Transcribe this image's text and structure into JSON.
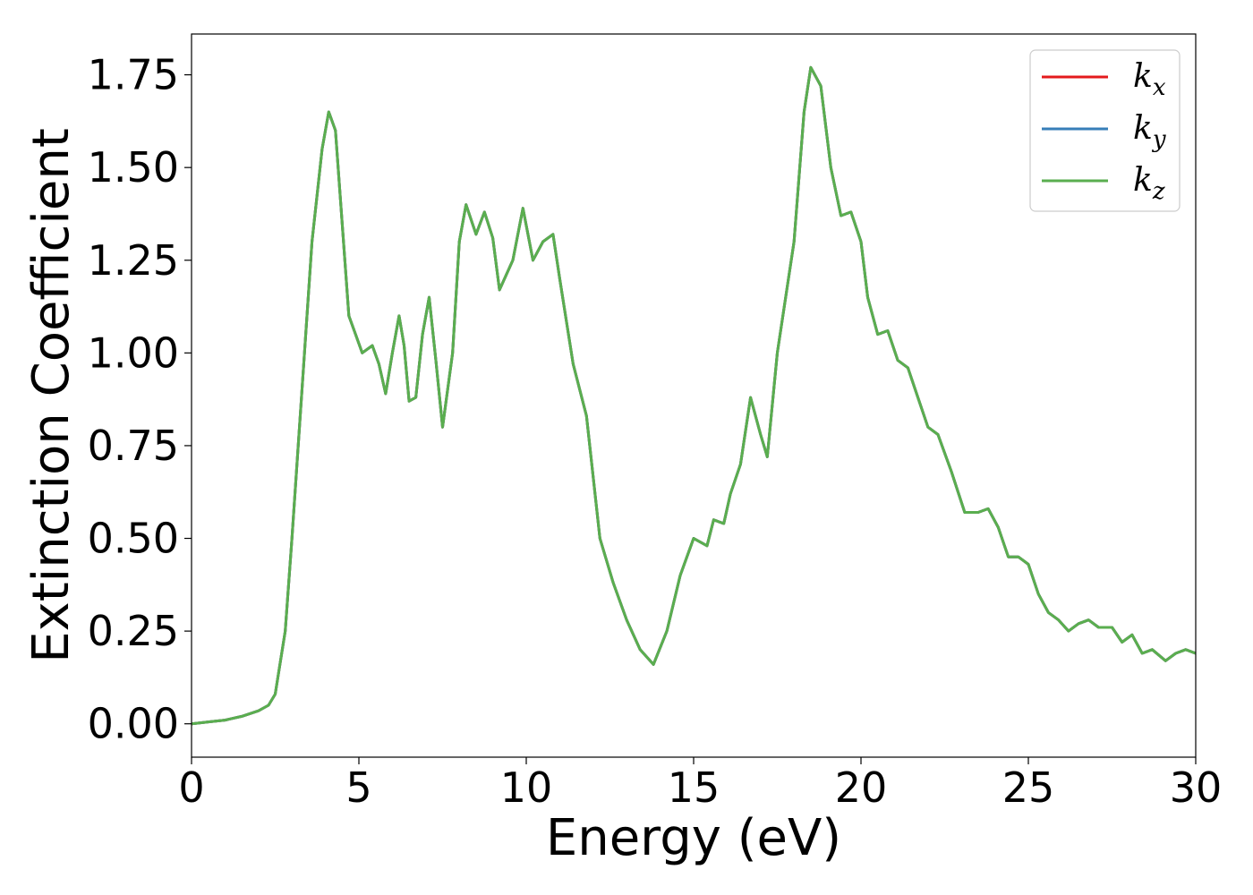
{
  "chart_data": {
    "type": "line",
    "xlabel": "Energy (eV)",
    "ylabel": "Extinction Coefficient",
    "xlim": [
      0,
      30
    ],
    "ylim": [
      -0.09,
      1.86
    ],
    "xticks": [
      0,
      5,
      10,
      15,
      20,
      25,
      30
    ],
    "xtick_labels": [
      "0",
      "5",
      "10",
      "15",
      "20",
      "25",
      "30"
    ],
    "yticks": [
      0.0,
      0.25,
      0.5,
      0.75,
      1.0,
      1.25,
      1.5,
      1.75
    ],
    "ytick_labels": [
      "0.00",
      "0.25",
      "0.50",
      "0.75",
      "1.00",
      "1.25",
      "1.50",
      "1.75"
    ],
    "grid": false,
    "legend_position": "top-right",
    "series": [
      {
        "name": "k_x",
        "label_main": "k",
        "label_sub": "x",
        "color": "#e41a1c",
        "x": [
          0,
          0.5,
          1,
          1.5,
          2,
          2.3,
          2.5,
          2.8,
          3.0,
          3.3,
          3.6,
          3.9,
          4.1,
          4.3,
          4.5,
          4.7,
          4.9,
          5.1,
          5.4,
          5.6,
          5.8,
          6.0,
          6.2,
          6.35,
          6.5,
          6.7,
          6.9,
          7.1,
          7.3,
          7.5,
          7.8,
          8.0,
          8.2,
          8.5,
          8.75,
          9.0,
          9.2,
          9.6,
          9.9,
          10.2,
          10.5,
          10.8,
          11.0,
          11.4,
          11.8,
          12.2,
          12.6,
          13.0,
          13.4,
          13.8,
          14.2,
          14.6,
          15.0,
          15.4,
          15.6,
          15.9,
          16.1,
          16.4,
          16.7,
          17.0,
          17.2,
          17.5,
          17.8,
          18.0,
          18.3,
          18.5,
          18.8,
          19.1,
          19.4,
          19.7,
          20.0,
          20.2,
          20.5,
          20.8,
          21.1,
          21.4,
          21.7,
          22.0,
          22.3,
          22.7,
          23.1,
          23.5,
          23.8,
          24.1,
          24.4,
          24.7,
          25.0,
          25.3,
          25.6,
          25.9,
          26.2,
          26.5,
          26.8,
          27.1,
          27.5,
          27.8,
          28.1,
          28.4,
          28.7,
          29.1,
          29.4,
          29.7,
          30.0
        ],
        "y": [
          0.0,
          0.005,
          0.01,
          0.02,
          0.035,
          0.05,
          0.08,
          0.25,
          0.5,
          0.9,
          1.3,
          1.55,
          1.65,
          1.6,
          1.35,
          1.1,
          1.05,
          1.0,
          1.02,
          0.97,
          0.89,
          1.0,
          1.1,
          1.02,
          0.87,
          0.88,
          1.05,
          1.15,
          0.98,
          0.8,
          1.0,
          1.3,
          1.4,
          1.32,
          1.38,
          1.31,
          1.17,
          1.25,
          1.39,
          1.25,
          1.3,
          1.32,
          1.2,
          0.97,
          0.83,
          0.5,
          0.38,
          0.28,
          0.2,
          0.16,
          0.25,
          0.4,
          0.5,
          0.48,
          0.55,
          0.54,
          0.62,
          0.7,
          0.88,
          0.78,
          0.72,
          1.0,
          1.18,
          1.3,
          1.65,
          1.77,
          1.72,
          1.5,
          1.37,
          1.38,
          1.3,
          1.15,
          1.05,
          1.06,
          0.98,
          0.96,
          0.88,
          0.8,
          0.78,
          0.68,
          0.57,
          0.57,
          0.58,
          0.53,
          0.45,
          0.45,
          0.43,
          0.35,
          0.3,
          0.28,
          0.25,
          0.27,
          0.28,
          0.26,
          0.26,
          0.22,
          0.24,
          0.19,
          0.2,
          0.17,
          0.19,
          0.2,
          0.19
        ]
      },
      {
        "name": "k_y",
        "label_main": "k",
        "label_sub": "y",
        "color": "#377eb8",
        "x": [
          0,
          0.5,
          1,
          1.5,
          2,
          2.3,
          2.5,
          2.8,
          3.0,
          3.3,
          3.6,
          3.9,
          4.1,
          4.3,
          4.5,
          4.7,
          4.9,
          5.1,
          5.4,
          5.6,
          5.8,
          6.0,
          6.2,
          6.35,
          6.5,
          6.7,
          6.9,
          7.1,
          7.3,
          7.5,
          7.8,
          8.0,
          8.2,
          8.5,
          8.75,
          9.0,
          9.2,
          9.6,
          9.9,
          10.2,
          10.5,
          10.8,
          11.0,
          11.4,
          11.8,
          12.2,
          12.6,
          13.0,
          13.4,
          13.8,
          14.2,
          14.6,
          15.0,
          15.4,
          15.6,
          15.9,
          16.1,
          16.4,
          16.7,
          17.0,
          17.2,
          17.5,
          17.8,
          18.0,
          18.3,
          18.5,
          18.8,
          19.1,
          19.4,
          19.7,
          20.0,
          20.2,
          20.5,
          20.8,
          21.1,
          21.4,
          21.7,
          22.0,
          22.3,
          22.7,
          23.1,
          23.5,
          23.8,
          24.1,
          24.4,
          24.7,
          25.0,
          25.3,
          25.6,
          25.9,
          26.2,
          26.5,
          26.8,
          27.1,
          27.5,
          27.8,
          28.1,
          28.4,
          28.7,
          29.1,
          29.4,
          29.7,
          30.0
        ],
        "y": [
          0.0,
          0.005,
          0.01,
          0.02,
          0.035,
          0.05,
          0.08,
          0.25,
          0.5,
          0.9,
          1.3,
          1.55,
          1.65,
          1.6,
          1.35,
          1.1,
          1.05,
          1.0,
          1.02,
          0.97,
          0.89,
          1.0,
          1.1,
          1.02,
          0.87,
          0.88,
          1.05,
          1.15,
          0.98,
          0.8,
          1.0,
          1.3,
          1.4,
          1.32,
          1.38,
          1.31,
          1.17,
          1.25,
          1.39,
          1.25,
          1.3,
          1.32,
          1.2,
          0.97,
          0.83,
          0.5,
          0.38,
          0.28,
          0.2,
          0.16,
          0.25,
          0.4,
          0.5,
          0.48,
          0.55,
          0.54,
          0.62,
          0.7,
          0.88,
          0.78,
          0.72,
          1.0,
          1.18,
          1.3,
          1.65,
          1.77,
          1.72,
          1.5,
          1.37,
          1.38,
          1.3,
          1.15,
          1.05,
          1.06,
          0.98,
          0.96,
          0.88,
          0.8,
          0.78,
          0.68,
          0.57,
          0.57,
          0.58,
          0.53,
          0.45,
          0.45,
          0.43,
          0.35,
          0.3,
          0.28,
          0.25,
          0.27,
          0.28,
          0.26,
          0.26,
          0.22,
          0.24,
          0.19,
          0.2,
          0.17,
          0.19,
          0.2,
          0.19
        ]
      },
      {
        "name": "k_z",
        "label_main": "k",
        "label_sub": "z",
        "color": "#5aae4f",
        "x": [
          0,
          0.5,
          1,
          1.5,
          2,
          2.3,
          2.5,
          2.8,
          3.0,
          3.3,
          3.6,
          3.9,
          4.1,
          4.3,
          4.5,
          4.7,
          4.9,
          5.1,
          5.4,
          5.6,
          5.8,
          6.0,
          6.2,
          6.35,
          6.5,
          6.7,
          6.9,
          7.1,
          7.3,
          7.5,
          7.8,
          8.0,
          8.2,
          8.5,
          8.75,
          9.0,
          9.2,
          9.6,
          9.9,
          10.2,
          10.5,
          10.8,
          11.0,
          11.4,
          11.8,
          12.2,
          12.6,
          13.0,
          13.4,
          13.8,
          14.2,
          14.6,
          15.0,
          15.4,
          15.6,
          15.9,
          16.1,
          16.4,
          16.7,
          17.0,
          17.2,
          17.5,
          17.8,
          18.0,
          18.3,
          18.5,
          18.8,
          19.1,
          19.4,
          19.7,
          20.0,
          20.2,
          20.5,
          20.8,
          21.1,
          21.4,
          21.7,
          22.0,
          22.3,
          22.7,
          23.1,
          23.5,
          23.8,
          24.1,
          24.4,
          24.7,
          25.0,
          25.3,
          25.6,
          25.9,
          26.2,
          26.5,
          26.8,
          27.1,
          27.5,
          27.8,
          28.1,
          28.4,
          28.7,
          29.1,
          29.4,
          29.7,
          30.0
        ],
        "y": [
          0.0,
          0.005,
          0.01,
          0.02,
          0.035,
          0.05,
          0.08,
          0.25,
          0.5,
          0.9,
          1.3,
          1.55,
          1.65,
          1.6,
          1.35,
          1.1,
          1.05,
          1.0,
          1.02,
          0.97,
          0.89,
          1.0,
          1.1,
          1.02,
          0.87,
          0.88,
          1.05,
          1.15,
          0.98,
          0.8,
          1.0,
          1.3,
          1.4,
          1.32,
          1.38,
          1.31,
          1.17,
          1.25,
          1.39,
          1.25,
          1.3,
          1.32,
          1.2,
          0.97,
          0.83,
          0.5,
          0.38,
          0.28,
          0.2,
          0.16,
          0.25,
          0.4,
          0.5,
          0.48,
          0.55,
          0.54,
          0.62,
          0.7,
          0.88,
          0.78,
          0.72,
          1.0,
          1.18,
          1.3,
          1.65,
          1.77,
          1.72,
          1.5,
          1.37,
          1.38,
          1.3,
          1.15,
          1.05,
          1.06,
          0.98,
          0.96,
          0.88,
          0.8,
          0.78,
          0.68,
          0.57,
          0.57,
          0.58,
          0.53,
          0.45,
          0.45,
          0.43,
          0.35,
          0.3,
          0.28,
          0.25,
          0.27,
          0.28,
          0.26,
          0.26,
          0.22,
          0.24,
          0.19,
          0.2,
          0.17,
          0.19,
          0.2,
          0.19
        ]
      }
    ]
  }
}
